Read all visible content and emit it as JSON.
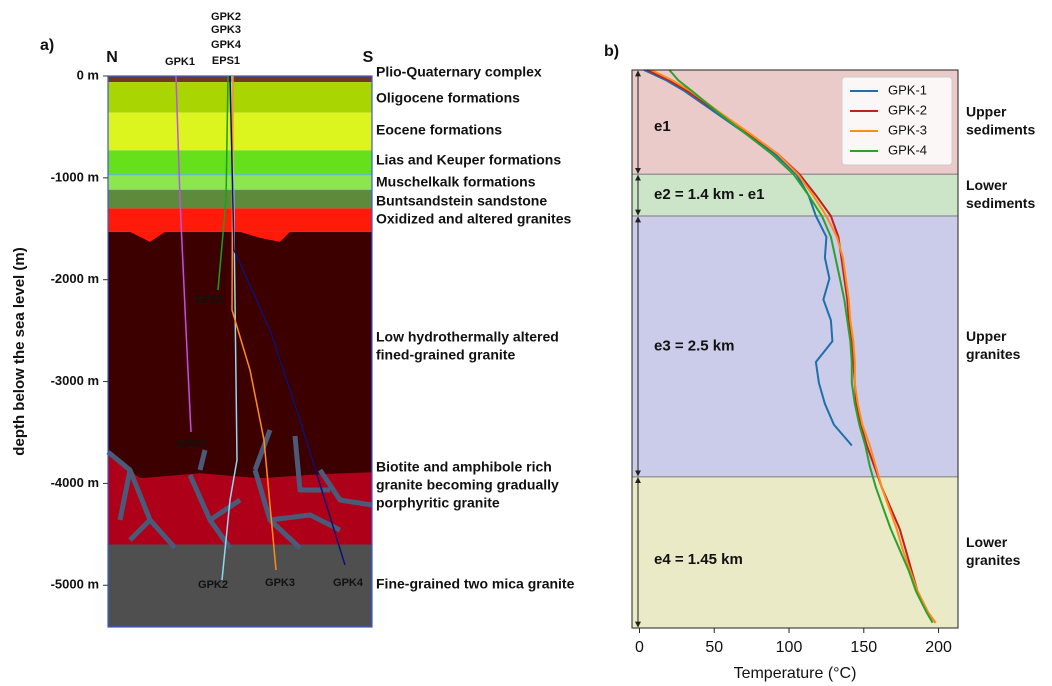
{
  "chart_data": [
    {
      "type": "section",
      "panel": "a)",
      "axis_label": "depth below the sea level (m)",
      "ylim": [
        0,
        -5410
      ],
      "yticks": [
        {
          "value": 0,
          "label": "0 m"
        },
        {
          "value": -1000,
          "label": "-1000 m"
        },
        {
          "value": -2000,
          "label": "-2000 m"
        },
        {
          "value": -3000,
          "label": "-3000 m"
        },
        {
          "value": -4000,
          "label": "-4000 m"
        },
        {
          "value": -5000,
          "label": "-5000 m"
        }
      ],
      "compass": [
        "N",
        "S"
      ],
      "layers": [
        {
          "name": [
            "Plio-Quaternary complex"
          ],
          "top": 0,
          "bottom": -60,
          "color": "#6e3b1e"
        },
        {
          "name": [
            "Oligocene formations"
          ],
          "top": -60,
          "bottom": -360,
          "color": "#a9d602"
        },
        {
          "name": [
            "Eocene formations"
          ],
          "top": -360,
          "bottom": -730,
          "color": "#dcf51e"
        },
        {
          "name": [
            "Lias and Keuper formations"
          ],
          "top": -730,
          "bottom": -970,
          "color": "#66e01a"
        },
        {
          "name": [
            "Muschelkalk formations"
          ],
          "top": -970,
          "bottom": -1120,
          "color": "#8ee64e"
        },
        {
          "name": [
            "Buntsandstein sandstone"
          ],
          "top": -1120,
          "bottom": -1300,
          "color": "#5e8a3c"
        },
        {
          "name": [
            "Oxidized and altered granites"
          ],
          "top": -1300,
          "bottom": -1530,
          "color": "#ff1a0a"
        },
        {
          "name": [
            "Low hydrothermally altered",
            "fined-grained granite"
          ],
          "top": -1530,
          "bottom": -3950,
          "color": "#3d0000"
        },
        {
          "name": [
            "Biotite and amphibole rich",
            "granite becoming gradually",
            "porphyritic granite"
          ],
          "top": -3950,
          "bottom": -4600,
          "color": "#ae0018"
        },
        {
          "name": [
            "Fine-grained two mica granite"
          ],
          "top": -4600,
          "bottom": -5410,
          "color": "#4f4f4f"
        }
      ],
      "wells": [
        {
          "name": "GPK1",
          "color": "#c050e8",
          "top_color": "#c050e8"
        },
        {
          "name": "GPK2",
          "color": "#8fd8f0",
          "top_color": "#8fd8f0"
        },
        {
          "name": "GPK3",
          "color": "#ff8c1a",
          "top_color": "#ee1111"
        },
        {
          "name": "GPK4",
          "color": "#101070",
          "top_color": "#101070"
        },
        {
          "name": "EPS1",
          "color": "#1e9e1e",
          "top_color": "#1e9e1e"
        }
      ]
    },
    {
      "type": "line",
      "panel": "b)",
      "xlabel": "Temperature (°C)",
      "xlim": [
        -5,
        213
      ],
      "xticks": [
        0,
        50,
        100,
        150,
        200
      ],
      "ylim": [
        0,
        5.35
      ],
      "y": [
        0,
        0.1,
        0.2,
        0.4,
        0.6,
        0.8,
        1.0,
        1.2,
        1.4,
        1.6,
        1.8,
        2.0,
        2.2,
        2.4,
        2.6,
        2.8,
        3.0,
        3.2,
        3.4,
        3.6,
        3.8,
        4.0,
        4.2,
        4.4,
        4.6,
        4.8,
        5.0,
        5.2,
        5.3
      ],
      "series": [
        {
          "name": "GPK-1",
          "color": "#1f6fa8",
          "values": [
            3,
            18,
            30,
            50,
            70,
            90,
            105,
            113,
            118,
            125,
            124,
            127,
            123,
            128,
            129,
            118,
            120,
            124,
            130,
            142,
            null,
            null,
            null,
            null,
            null,
            null,
            null,
            null,
            null
          ]
        },
        {
          "name": "GPK-2",
          "color": "#c02020",
          "values": [
            5,
            20,
            32,
            52,
            72,
            92,
            107,
            118,
            128,
            133,
            135,
            137,
            139,
            140,
            142,
            143,
            144,
            145,
            148,
            152,
            157,
            162,
            168,
            174,
            178,
            182,
            186,
            193,
            198
          ]
        },
        {
          "name": "GPK-3",
          "color": "#ff8c1a",
          "values": [
            8,
            22,
            34,
            53,
            73,
            92,
            106,
            116,
            125,
            132,
            136,
            138,
            140,
            141,
            143,
            144,
            144,
            146,
            149,
            154,
            158,
            162,
            167,
            172,
            176,
            181,
            186,
            193,
            198
          ]
        },
        {
          "name": "GPK-4",
          "color": "#2ca02c",
          "values": [
            20,
            26,
            35,
            52,
            70,
            88,
            103,
            113,
            122,
            128,
            131,
            134,
            137,
            139,
            141,
            142,
            142,
            144,
            147,
            151,
            154,
            158,
            163,
            168,
            174,
            180,
            185,
            192,
            196
          ]
        }
      ],
      "zones": [
        {
          "label": "e1",
          "name": [
            "Upper",
            "sediments"
          ],
          "top": 0,
          "bottom": 1.0,
          "color": "#ebcaca"
        },
        {
          "label": "e2 = 1.4 km - e1",
          "name": [
            "Lower",
            "sediments"
          ],
          "top": 1.0,
          "bottom": 1.4,
          "color": "#cce5c8"
        },
        {
          "label": "e3 = 2.5 km",
          "name": [
            "Upper",
            "granites"
          ],
          "top": 1.4,
          "bottom": 3.9,
          "color": "#cbcbea"
        },
        {
          "label": "e4 = 1.45 km",
          "name": [
            "Lower",
            "granites"
          ],
          "top": 3.9,
          "bottom": 5.35,
          "color": "#eaeac6"
        }
      ],
      "legend": "upper right"
    }
  ]
}
